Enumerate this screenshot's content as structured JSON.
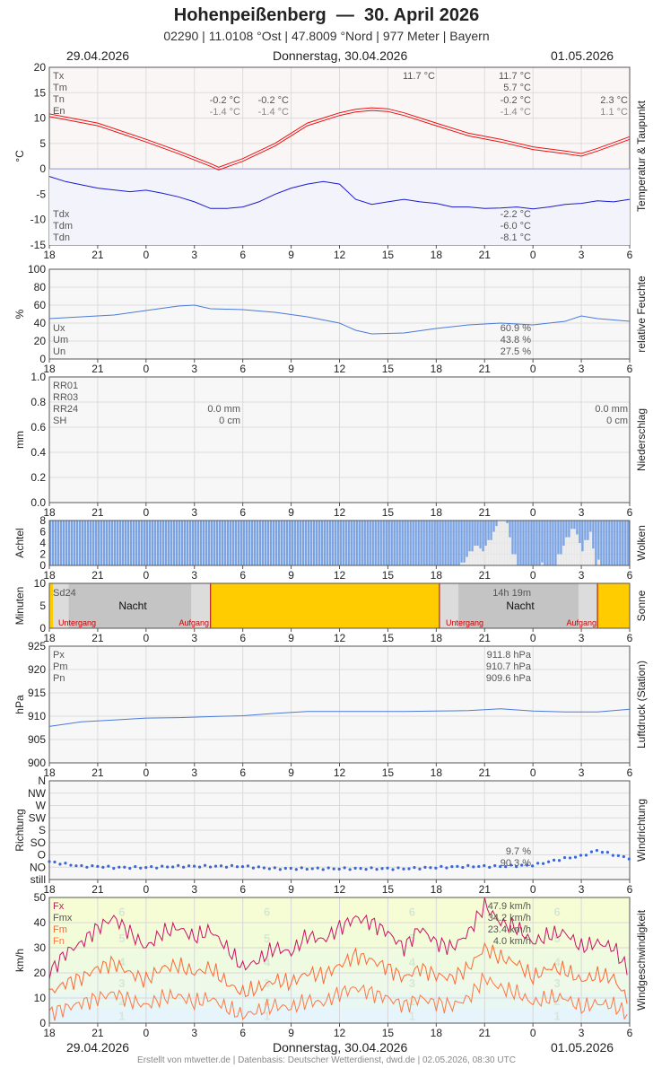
{
  "header": {
    "station": "Hohenpeißenberg",
    "separator": "—",
    "date": "30. April 2026",
    "info": "02290  |  11.0108 °Ost  |  47.8009 °Nord  |  977 Meter  |  Bayern",
    "date_left": "29.04.2026",
    "date_center": "Donnerstag, 30.04.2026",
    "date_right": "01.05.2026"
  },
  "footer": "Erstellt von mtwetter.de | Datenbasis: Deutscher Wetterdienst, dwd.de | 02.05.2026, 08:30 UTC",
  "x_ticks": [
    "18",
    "21",
    "0",
    "3",
    "6",
    "9",
    "12",
    "15",
    "18",
    "21",
    "0",
    "3",
    "6"
  ],
  "colors": {
    "temp": "#ee1111",
    "dew": "#1a1ad0",
    "humidity": "#4a7ad8",
    "cloud": "#7ba3e3",
    "sun": "#ffcc00",
    "pressure": "#4a7ad8",
    "wind_dir": "#3a66d8",
    "wind_fx": "#cc1166",
    "wind_fmx": "#cc2255",
    "wind_fm": "#ff6633",
    "wind_fn": "#ff7744"
  },
  "chart_data": [
    {
      "name": "temperature",
      "type": "line",
      "ylabel": "°C",
      "side_label": "Temperatur & Taupunkt",
      "ylim": [
        -15,
        20
      ],
      "yticks": [
        "20",
        "15",
        "10",
        "5",
        "0",
        "-5",
        "-10",
        "-15"
      ],
      "legend_top": [
        "Tx",
        "Tm",
        "Tn",
        "En"
      ],
      "legend_bottom": [
        "Tdx",
        "Tdm",
        "Tdn"
      ],
      "annotations": {
        "day_max": "11.7 °C",
        "tn_night1": "-0.2 °C",
        "en_night1": "-1.4 °C",
        "tn_night1b": "-0.2 °C",
        "en_night1b": "-1.4 °C",
        "tx_day": "11.7 °C",
        "tm_day": "5.7 °C",
        "tn_day": "-0.2 °C",
        "en_day": "-1.4 °C",
        "tn_next": "2.3 °C",
        "en_next": "1.1 °C",
        "tdx_day": "-2.2 °C",
        "tdm_day": "-6.0 °C",
        "tdn_day": "-8.1 °C"
      },
      "series": [
        {
          "name": "T",
          "hours": [
            -6,
            -3,
            0,
            2,
            4,
            4.5,
            6,
            8,
            10,
            12,
            13,
            14,
            15,
            16,
            18,
            20,
            22,
            24,
            26,
            27,
            28,
            30
          ],
          "values": [
            10.3,
            8.5,
            5.3,
            3.0,
            0.5,
            -0.2,
            1.5,
            4.5,
            8.5,
            10.5,
            11.2,
            11.5,
            11.3,
            10.5,
            8.5,
            6.5,
            5.3,
            3.8,
            3.0,
            2.5,
            3.5,
            5.8
          ]
        },
        {
          "name": "Td",
          "hours": [
            -6,
            -5,
            -3,
            -1,
            0,
            1,
            2,
            3,
            4,
            5,
            6,
            7,
            8,
            9,
            10,
            11,
            12,
            13,
            14,
            15,
            16,
            17,
            18,
            19,
            20,
            21,
            22,
            23,
            24,
            25,
            26,
            27,
            28,
            29,
            30
          ],
          "values": [
            -1.5,
            -2.5,
            -3.8,
            -4.5,
            -4.2,
            -4.8,
            -5.5,
            -6.5,
            -7.8,
            -7.8,
            -7.5,
            -6.5,
            -5.0,
            -3.8,
            -3.0,
            -2.5,
            -3.0,
            -6.0,
            -7.0,
            -6.5,
            -6.0,
            -6.5,
            -6.8,
            -7.5,
            -7.5,
            -7.8,
            -7.7,
            -7.5,
            -7.9,
            -7.5,
            -7.0,
            -6.8,
            -6.3,
            -6.5,
            -6.0
          ]
        }
      ]
    },
    {
      "name": "humidity",
      "type": "line",
      "ylabel": "%",
      "side_label": "relative Feuchte",
      "ylim": [
        0,
        100
      ],
      "yticks": [
        "100",
        "80",
        "60",
        "40",
        "20",
        "0"
      ],
      "legend": [
        "Ux",
        "Um",
        "Un"
      ],
      "annotations": {
        "ux": "60.9 %",
        "um": "43.8 %",
        "un": "27.5 %"
      },
      "series": [
        {
          "name": "U",
          "hours": [
            -6,
            -4,
            -2,
            0,
            2,
            3,
            4,
            6,
            8,
            10,
            12,
            13,
            14,
            16,
            18,
            20,
            22,
            24,
            26,
            27,
            28,
            30
          ],
          "values": [
            45,
            47,
            49,
            54,
            59,
            60,
            56,
            55,
            52,
            47,
            40,
            32,
            28,
            29,
            34,
            38,
            40,
            38,
            42,
            48,
            45,
            42
          ]
        }
      ]
    },
    {
      "name": "precipitation",
      "type": "bar",
      "ylabel": "mm",
      "side_label": "Niederschlag",
      "ylim": [
        0,
        1.0
      ],
      "yticks": [
        "1.0",
        "0.8",
        "0.6",
        "0.4",
        "0.2",
        "0.0"
      ],
      "legend": [
        "RR01",
        "RR03",
        "RR24",
        "SH"
      ],
      "annotations": {
        "rr24_1": "0.0 mm",
        "sh_1": "0 cm",
        "rr24_2": "0.0 mm",
        "sh_2": "0 cm"
      }
    },
    {
      "name": "clouds",
      "type": "bar",
      "ylabel": "Achtel",
      "side_label": "Wolken",
      "ylim": [
        0,
        8
      ],
      "yticks": [
        "8",
        "6",
        "4",
        "2",
        "0"
      ],
      "gaps": [
        {
          "hours": [
            -6,
            30
          ],
          "clear": [
            [
              19.6,
              0.5
            ],
            [
              19.9,
              1.5
            ],
            [
              20.1,
              2.5
            ],
            [
              20.4,
              3.5
            ],
            [
              20.6,
              3.0
            ],
            [
              20.9,
              2.5
            ],
            [
              21.1,
              3.5
            ],
            [
              21.3,
              4.5
            ],
            [
              21.5,
              6.0
            ],
            [
              21.7,
              7.0
            ],
            [
              21.9,
              8.0
            ],
            [
              22.1,
              8.0
            ],
            [
              22.3,
              7.5
            ],
            [
              22.5,
              5.0
            ],
            [
              22.8,
              2.0
            ],
            [
              24.5,
              0.5
            ],
            [
              25.6,
              2.0
            ],
            [
              25.9,
              3.5
            ],
            [
              26.1,
              5.0
            ],
            [
              26.4,
              6.5
            ],
            [
              26.6,
              5.5
            ],
            [
              26.8,
              4.0
            ],
            [
              27.0,
              2.5
            ],
            [
              27.3,
              4.5
            ],
            [
              27.5,
              6.0
            ],
            [
              27.7,
              3.0
            ],
            [
              28.0,
              1.0
            ]
          ]
        }
      ]
    },
    {
      "name": "sunshine",
      "type": "area",
      "ylabel": "Minuten",
      "side_label": "Sonne",
      "ylim": [
        0,
        10
      ],
      "yticks": [
        "10",
        "5",
        "0"
      ],
      "legend": [
        "Sd24"
      ],
      "labels": {
        "night": "Nacht",
        "sunset": "Untergang",
        "sunrise": "Aufgang",
        "total": "14h 19m"
      },
      "sun_spans": [
        [
          4.0,
          18.2
        ],
        [
          28.0,
          30
        ]
      ],
      "nights": [
        [
          -6,
          4.0
        ],
        [
          18.2,
          28.0
        ]
      ]
    },
    {
      "name": "pressure",
      "type": "line",
      "ylabel": "hPa",
      "side_label": "Luftdruck (Station)",
      "ylim": [
        900,
        925
      ],
      "yticks": [
        "925",
        "920",
        "915",
        "910",
        "905",
        "900"
      ],
      "legend": [
        "Px",
        "Pm",
        "Pn"
      ],
      "annotations": {
        "px": "911.8 hPa",
        "pm": "910.7 hPa",
        "pn": "909.6 hPa"
      },
      "series": [
        {
          "name": "P",
          "hours": [
            -6,
            -4,
            -2,
            0,
            2,
            4,
            6,
            8,
            10,
            12,
            14,
            16,
            18,
            20,
            22,
            24,
            26,
            28,
            30
          ],
          "values": [
            907.8,
            908.8,
            909.2,
            909.6,
            909.7,
            909.9,
            910.1,
            910.6,
            911.0,
            911.0,
            911.0,
            911.0,
            911.1,
            911.2,
            911.6,
            911.1,
            910.9,
            910.9,
            911.5
          ]
        }
      ]
    },
    {
      "name": "wind_direction",
      "type": "scatter",
      "ylabel": "Richtung",
      "side_label": "Windrichtung",
      "yticks": [
        "N",
        "NW",
        "W",
        "SW",
        "S",
        "SO",
        "O",
        "NO",
        "still"
      ],
      "annotations": {
        "a": "9.7 %",
        "b": "90.3 %"
      },
      "series": [
        {
          "name": "Dir",
          "hours": [
            -6,
            -5,
            -4,
            -3,
            -2,
            0,
            2,
            4,
            6,
            8,
            10,
            12,
            14,
            16,
            18,
            20,
            22,
            24,
            25,
            26,
            27,
            28,
            29,
            30
          ],
          "values": [
            1.2,
            1.0,
            0.8,
            0.8,
            0.7,
            0.7,
            0.8,
            0.8,
            0.8,
            0.6,
            0.6,
            0.6,
            0.6,
            0.6,
            0.7,
            0.8,
            0.8,
            0.9,
            1.2,
            1.5,
            1.7,
            2.2,
            1.8,
            1.5
          ]
        }
      ]
    },
    {
      "name": "wind_speed",
      "type": "line",
      "ylabel": "km/h",
      "side_label": "Windgeschwindigkeit",
      "ylim": [
        0,
        50
      ],
      "yticks": [
        "50",
        "40",
        "30",
        "20",
        "10",
        "0"
      ],
      "legend": [
        "Fx",
        "Fmx",
        "Fm",
        "Fn"
      ],
      "annotations": {
        "fx": "47.9 km/h",
        "fmx": "34.2 km/h",
        "fm": "23.4 km/h",
        "fn": "4.0 km/h"
      },
      "beaufort": [
        "1",
        "2",
        "3",
        "4",
        "5",
        "6"
      ],
      "series": [
        {
          "name": "Fx",
          "hours": [
            -6,
            -5,
            -4,
            -3,
            -2,
            -1,
            0,
            1,
            2,
            3,
            4,
            5,
            6,
            7,
            8,
            9,
            10,
            11,
            12,
            13,
            14,
            15,
            16,
            17,
            18,
            19,
            20,
            21,
            22,
            23,
            24,
            25,
            26,
            27,
            28,
            29,
            30
          ],
          "values": [
            20,
            28,
            32,
            38,
            42,
            36,
            30,
            36,
            38,
            34,
            37,
            30,
            22,
            25,
            30,
            28,
            35,
            33,
            38,
            42,
            40,
            36,
            30,
            38,
            32,
            30,
            36,
            47,
            40,
            38,
            32,
            35,
            36,
            30,
            32,
            30,
            20
          ]
        },
        {
          "name": "Fm",
          "hours": [
            -6,
            -5,
            -4,
            -3,
            -2,
            -1,
            0,
            1,
            2,
            3,
            4,
            5,
            6,
            7,
            8,
            9,
            10,
            11,
            12,
            13,
            14,
            15,
            16,
            17,
            18,
            19,
            20,
            21,
            22,
            23,
            24,
            25,
            26,
            27,
            28,
            29,
            30
          ],
          "values": [
            12,
            16,
            18,
            22,
            24,
            20,
            17,
            22,
            23,
            20,
            22,
            16,
            12,
            14,
            17,
            16,
            20,
            19,
            23,
            27,
            25,
            22,
            18,
            22,
            19,
            18,
            22,
            30,
            26,
            24,
            18,
            22,
            21,
            17,
            19,
            18,
            8
          ]
        },
        {
          "name": "Fn",
          "hours": [
            -6,
            -5,
            -4,
            -3,
            -2,
            -1,
            0,
            1,
            2,
            3,
            4,
            5,
            6,
            7,
            8,
            9,
            10,
            11,
            12,
            13,
            14,
            15,
            16,
            17,
            18,
            19,
            20,
            21,
            22,
            23,
            24,
            25,
            26,
            27,
            28,
            29,
            30
          ],
          "values": [
            4,
            6,
            8,
            10,
            12,
            9,
            7,
            10,
            11,
            8,
            10,
            6,
            3,
            5,
            7,
            6,
            9,
            8,
            12,
            14,
            12,
            10,
            7,
            10,
            8,
            7,
            10,
            18,
            14,
            12,
            8,
            10,
            10,
            6,
            8,
            7,
            3
          ]
        }
      ]
    }
  ]
}
